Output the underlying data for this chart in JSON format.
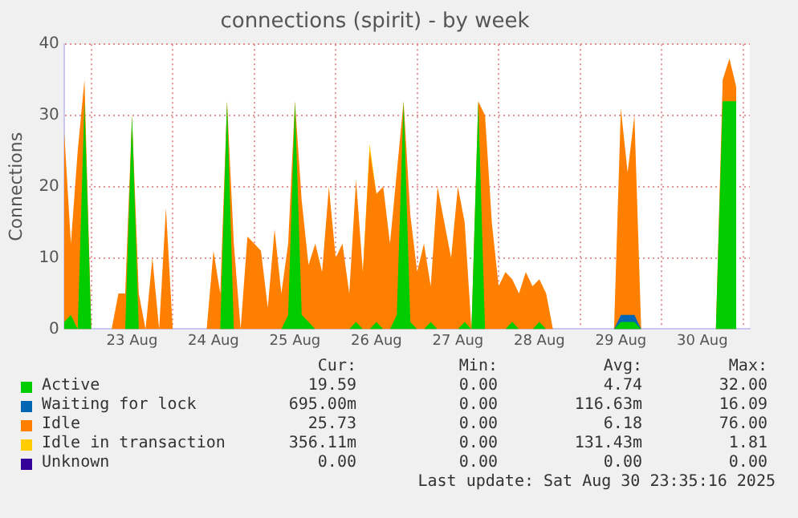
{
  "chart_data": {
    "type": "area",
    "title": "connections (spirit) - by week",
    "ylabel": "Connections",
    "stacked": true,
    "grid": true,
    "legend": "bottom",
    "x": [
      "2025-08-22T16:00",
      "2025-08-22T18:00",
      "2025-08-22T20:00",
      "2025-08-22T22:00",
      "2025-08-23T00:00",
      "2025-08-23T02:00",
      "2025-08-23T04:00",
      "2025-08-23T06:00",
      "2025-08-23T08:00",
      "2025-08-23T10:00",
      "2025-08-23T12:00",
      "2025-08-23T14:00",
      "2025-08-23T16:00",
      "2025-08-23T18:00",
      "2025-08-23T20:00",
      "2025-08-23T22:00",
      "2025-08-24T00:00",
      "2025-08-24T02:00",
      "2025-08-24T04:00",
      "2025-08-24T06:00",
      "2025-08-24T08:00",
      "2025-08-24T10:00",
      "2025-08-24T12:00",
      "2025-08-24T14:00",
      "2025-08-24T16:00",
      "2025-08-24T18:00",
      "2025-08-24T20:00",
      "2025-08-24T22:00",
      "2025-08-25T00:00",
      "2025-08-25T02:00",
      "2025-08-25T04:00",
      "2025-08-25T06:00",
      "2025-08-25T08:00",
      "2025-08-25T10:00",
      "2025-08-25T12:00",
      "2025-08-25T14:00",
      "2025-08-25T16:00",
      "2025-08-25T18:00",
      "2025-08-25T20:00",
      "2025-08-25T22:00",
      "2025-08-26T00:00",
      "2025-08-26T02:00",
      "2025-08-26T04:00",
      "2025-08-26T06:00",
      "2025-08-26T08:00",
      "2025-08-26T10:00",
      "2025-08-26T12:00",
      "2025-08-26T14:00",
      "2025-08-26T16:00",
      "2025-08-26T18:00",
      "2025-08-26T20:00",
      "2025-08-26T22:00",
      "2025-08-27T00:00",
      "2025-08-27T02:00",
      "2025-08-27T04:00",
      "2025-08-27T06:00",
      "2025-08-27T08:00",
      "2025-08-27T10:00",
      "2025-08-27T12:00",
      "2025-08-27T14:00",
      "2025-08-27T16:00",
      "2025-08-27T18:00",
      "2025-08-27T20:00",
      "2025-08-27T22:00",
      "2025-08-28T00:00",
      "2025-08-28T02:00",
      "2025-08-28T04:00",
      "2025-08-28T06:00",
      "2025-08-28T08:00",
      "2025-08-28T10:00",
      "2025-08-28T12:00",
      "2025-08-28T14:00",
      "2025-08-28T16:00",
      "2025-08-28T18:00",
      "2025-08-28T20:00",
      "2025-08-28T22:00",
      "2025-08-29T00:00",
      "2025-08-29T02:00",
      "2025-08-29T04:00",
      "2025-08-29T06:00",
      "2025-08-29T08:00",
      "2025-08-29T10:00",
      "2025-08-29T12:00",
      "2025-08-29T14:00",
      "2025-08-29T16:00",
      "2025-08-29T18:00",
      "2025-08-29T20:00",
      "2025-08-29T22:00",
      "2025-08-30T00:00",
      "2025-08-30T02:00",
      "2025-08-30T04:00",
      "2025-08-30T06:00",
      "2025-08-30T08:00",
      "2025-08-30T10:00",
      "2025-08-30T12:00",
      "2025-08-30T14:00",
      "2025-08-30T16:00",
      "2025-08-30T18:00",
      "2025-08-30T20:00",
      "2025-08-30T22:00"
    ],
    "xlim": [
      "2025-08-22T16:00",
      "2025-08-31T02:00"
    ],
    "xticks": [
      {
        "value": "2025-08-23T00:00",
        "label": null
      },
      {
        "value": "2025-08-23T12:00",
        "label": "23 Aug"
      },
      {
        "value": "2025-08-24T00:00",
        "label": null
      },
      {
        "value": "2025-08-24T12:00",
        "label": "24 Aug"
      },
      {
        "value": "2025-08-25T00:00",
        "label": null
      },
      {
        "value": "2025-08-25T12:00",
        "label": "25 Aug"
      },
      {
        "value": "2025-08-26T00:00",
        "label": null
      },
      {
        "value": "2025-08-26T12:00",
        "label": "26 Aug"
      },
      {
        "value": "2025-08-27T00:00",
        "label": null
      },
      {
        "value": "2025-08-27T12:00",
        "label": "27 Aug"
      },
      {
        "value": "2025-08-28T00:00",
        "label": null
      },
      {
        "value": "2025-08-28T12:00",
        "label": "28 Aug"
      },
      {
        "value": "2025-08-29T00:00",
        "label": null
      },
      {
        "value": "2025-08-29T12:00",
        "label": "29 Aug"
      },
      {
        "value": "2025-08-30T00:00",
        "label": null
      },
      {
        "value": "2025-08-30T12:00",
        "label": "30 Aug"
      },
      {
        "value": "2025-08-31T00:00",
        "label": null
      }
    ],
    "ylim": [
      0,
      40
    ],
    "yticks": [
      0,
      10,
      20,
      30,
      40
    ],
    "series": [
      {
        "name": "Active",
        "color": "#00cc00",
        "values": [
          1,
          2,
          0,
          32,
          0,
          0,
          0,
          0,
          0,
          0,
          30,
          0,
          0,
          0,
          0,
          0,
          0,
          0,
          0,
          0,
          0,
          0,
          0,
          0,
          32,
          0,
          0,
          0,
          0,
          0,
          0,
          0,
          0,
          2,
          32,
          2,
          1,
          0,
          0,
          0,
          0,
          0,
          0,
          1,
          0,
          0,
          1,
          0,
          0,
          2,
          32,
          1,
          0,
          0,
          1,
          0,
          0,
          0,
          0,
          1,
          0,
          32,
          0,
          0,
          0,
          0,
          1,
          0,
          0,
          0,
          1,
          0,
          0,
          0,
          0,
          0,
          0,
          0,
          0,
          0,
          0,
          0,
          1,
          1,
          1,
          0,
          0,
          0,
          0,
          0,
          0,
          0,
          0,
          0,
          0,
          0,
          0,
          32,
          32,
          32
        ]
      },
      {
        "name": "Waiting for lock",
        "color": "#0066b3",
        "values": [
          null,
          null,
          null,
          null,
          null,
          null,
          null,
          null,
          null,
          null,
          null,
          null,
          null,
          null,
          null,
          null,
          null,
          null,
          null,
          null,
          null,
          null,
          null,
          null,
          null,
          null,
          null,
          null,
          null,
          null,
          null,
          null,
          null,
          null,
          null,
          null,
          null,
          null,
          null,
          null,
          null,
          null,
          null,
          null,
          null,
          null,
          null,
          null,
          null,
          null,
          null,
          null,
          null,
          null,
          null,
          null,
          null,
          null,
          null,
          null,
          null,
          null,
          null,
          null,
          null,
          null,
          null,
          null,
          null,
          null,
          null,
          null,
          null,
          null,
          null,
          null,
          null,
          null,
          null,
          null,
          null,
          0,
          1,
          1,
          1,
          0,
          null,
          null,
          null,
          null,
          null,
          null,
          null,
          null,
          null,
          null,
          null,
          null,
          null,
          null
        ]
      },
      {
        "name": "Idle",
        "color": "#ff8000",
        "values": [
          27,
          10,
          25,
          3,
          0,
          0,
          0,
          0,
          5,
          5,
          0,
          5,
          0,
          10,
          0,
          17,
          0,
          0,
          0,
          0,
          0,
          0,
          11,
          5,
          0,
          12,
          0,
          13,
          12,
          11,
          3,
          14,
          5,
          10,
          0,
          16,
          8,
          12,
          8,
          20,
          10,
          12,
          5,
          20,
          8,
          25,
          18,
          20,
          12,
          20,
          0,
          15,
          8,
          12,
          5,
          20,
          15,
          10,
          20,
          14,
          0,
          0,
          30,
          15,
          6,
          8,
          6,
          5,
          8,
          6,
          6,
          5,
          0,
          0,
          0,
          0,
          0,
          0,
          0,
          0,
          0,
          0,
          29,
          20,
          28,
          0,
          0,
          0,
          0,
          0,
          0,
          0,
          0,
          0,
          0,
          0,
          0,
          3,
          6,
          2
        ]
      },
      {
        "name": "Idle in transaction",
        "color": "#ffcc00",
        "values": [
          null,
          null,
          null,
          null,
          null,
          null,
          null,
          null,
          null,
          null,
          null,
          null,
          null,
          null,
          null,
          null,
          null,
          null,
          null,
          null,
          null,
          null,
          null,
          null,
          null,
          null,
          null,
          null,
          null,
          null,
          null,
          null,
          null,
          null,
          null,
          null,
          null,
          null,
          null,
          null,
          null,
          null,
          null,
          null,
          0,
          1,
          0,
          null,
          null,
          null,
          null,
          null,
          null,
          null,
          null,
          null,
          null,
          null,
          null,
          null,
          null,
          null,
          null,
          null,
          null,
          null,
          null,
          null,
          null,
          null,
          null,
          null,
          null,
          null,
          null,
          null,
          null,
          null,
          null,
          null,
          null,
          null,
          null,
          null,
          null,
          null,
          null,
          null,
          null,
          null,
          null,
          null,
          null,
          null,
          null,
          null,
          null,
          null,
          null,
          null
        ]
      },
      {
        "name": "Unknown",
        "color": "#330099",
        "values": [
          null,
          null,
          null,
          null,
          null,
          null,
          null,
          null,
          null,
          null,
          null,
          null,
          null,
          null,
          null,
          null,
          null,
          null,
          null,
          null,
          null,
          null,
          null,
          null,
          null,
          null,
          null,
          null,
          null,
          null,
          null,
          null,
          null,
          null,
          null,
          null,
          null,
          null,
          null,
          null,
          null,
          null,
          null,
          null,
          null,
          null,
          null,
          null,
          null,
          null,
          null,
          null,
          null,
          null,
          null,
          null,
          null,
          null,
          null,
          null,
          null,
          null,
          null,
          null,
          null,
          null,
          null,
          null,
          null,
          null,
          null,
          null,
          null,
          null,
          null,
          null,
          null,
          null,
          null,
          null,
          null,
          null,
          null,
          null,
          null,
          null,
          null,
          null,
          null,
          null,
          null,
          null,
          null,
          null,
          null,
          null,
          null,
          null,
          null,
          null
        ]
      }
    ],
    "annotations": [
      "Cur:",
      "Min:",
      "Avg:",
      "Max:",
      "19.59",
      "0.00",
      "4.74",
      "32.00",
      "695.00m",
      "0.00",
      "116.63m",
      "16.09",
      "25.73",
      "0.00",
      "6.18",
      "76.00",
      "356.11m",
      "0.00",
      "131.43m",
      "1.81",
      "0.00",
      "0.00",
      "0.00",
      "0.00",
      "Last update: Sat Aug 30 23:35:16 2025"
    ]
  }
}
